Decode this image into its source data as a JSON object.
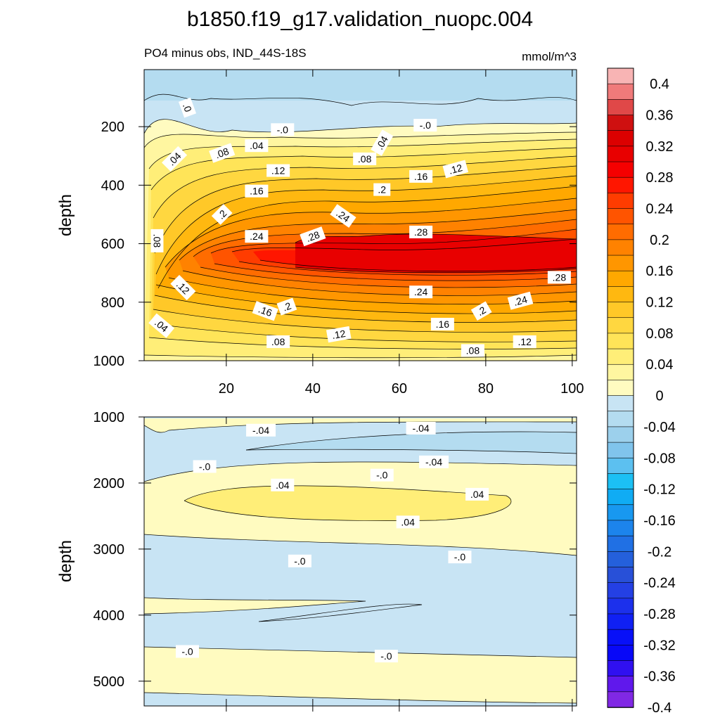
{
  "title": "b1850.f19_g17.validation_nuopc.004",
  "chart_data": {
    "type": "contour",
    "panel_top": {
      "subtitle_left": "PO4 minus obs, IND_44S-18S",
      "subtitle_right": "mmol/m^3",
      "ylabel": "depth",
      "xlim": [
        1,
        101
      ],
      "ylim": [
        1000,
        5
      ],
      "x_ticks": [
        "20",
        "40",
        "60",
        "80",
        "100"
      ],
      "x_tick_values": [
        20,
        40,
        60,
        80,
        100
      ],
      "y_ticks": [
        "200",
        "400",
        "600",
        "800",
        "1000"
      ],
      "y_tick_values": [
        200,
        400,
        600,
        800,
        1000
      ],
      "contour_labels": [
        {
          "text": ".0",
          "x": 11,
          "y": 135,
          "rot": 70
        },
        {
          "text": "-.0",
          "x": 33,
          "y": 210,
          "rot": 0
        },
        {
          "text": "-.0",
          "x": 66,
          "y": 195,
          "rot": 0
        },
        {
          "text": ".04",
          "x": 8,
          "y": 310,
          "rot": -45
        },
        {
          "text": ".08",
          "x": 19,
          "y": 290,
          "rot": -20
        },
        {
          "text": ".04",
          "x": 27,
          "y": 265,
          "rot": 0
        },
        {
          "text": ".04",
          "x": 56,
          "y": 255,
          "rot": -60
        },
        {
          "text": ".08",
          "x": 52,
          "y": 310,
          "rot": 0
        },
        {
          "text": ".12",
          "x": 32,
          "y": 350,
          "rot": 0
        },
        {
          "text": ".12",
          "x": 73,
          "y": 345,
          "rot": -15
        },
        {
          "text": ".16",
          "x": 65,
          "y": 370,
          "rot": 0
        },
        {
          "text": ".16",
          "x": 27,
          "y": 420,
          "rot": 0
        },
        {
          "text": ".2",
          "x": 56,
          "y": 415,
          "rot": 0
        },
        {
          "text": ".2",
          "x": 19,
          "y": 500,
          "rot": -45
        },
        {
          "text": ".24",
          "x": 47,
          "y": 505,
          "rot": 35
        },
        {
          "text": ".24",
          "x": 27,
          "y": 575,
          "rot": 0
        },
        {
          "text": ".28",
          "x": 40,
          "y": 575,
          "rot": -20
        },
        {
          "text": ".28",
          "x": 65,
          "y": 560,
          "rot": 0
        },
        {
          "text": ".08",
          "x": 4,
          "y": 590,
          "rot": 90
        },
        {
          "text": ".12",
          "x": 10,
          "y": 750,
          "rot": 45
        },
        {
          "text": ".24",
          "x": 65,
          "y": 765,
          "rot": 0
        },
        {
          "text": ".28",
          "x": 97,
          "y": 715,
          "rot": 0
        },
        {
          "text": ".24",
          "x": 88,
          "y": 795,
          "rot": -15
        },
        {
          "text": ".2",
          "x": 34,
          "y": 815,
          "rot": -20
        },
        {
          "text": ".16",
          "x": 29,
          "y": 830,
          "rot": 20
        },
        {
          "text": ".2",
          "x": 79,
          "y": 830,
          "rot": -30
        },
        {
          "text": ".16",
          "x": 70,
          "y": 875,
          "rot": 0
        },
        {
          "text": ".04",
          "x": 5,
          "y": 880,
          "rot": 40
        },
        {
          "text": ".12",
          "x": 46,
          "y": 910,
          "rot": -10
        },
        {
          "text": ".08",
          "x": 32,
          "y": 935,
          "rot": 0
        },
        {
          "text": ".12",
          "x": 89,
          "y": 935,
          "rot": 0
        },
        {
          "text": ".08",
          "x": 77,
          "y": 965,
          "rot": 0
        }
      ]
    },
    "panel_bottom": {
      "ylabel": "depth",
      "xlim": [
        1,
        101
      ],
      "ylim": [
        5375,
        1000
      ],
      "y_ticks": [
        "1000",
        "2000",
        "3000",
        "4000",
        "5000"
      ],
      "y_tick_values": [
        1000,
        2000,
        3000,
        4000,
        5000
      ],
      "contour_labels": [
        {
          "text": "-.04",
          "x": 28,
          "y": 1200,
          "rot": 0
        },
        {
          "text": "-.04",
          "x": 65,
          "y": 1170,
          "rot": 0
        },
        {
          "text": "-.04",
          "x": 68,
          "y": 1680,
          "rot": 0
        },
        {
          "text": "-.0",
          "x": 15,
          "y": 1750,
          "rot": 0
        },
        {
          "text": "-.0",
          "x": 56,
          "y": 1880,
          "rot": 0
        },
        {
          "text": ".04",
          "x": 33,
          "y": 2030,
          "rot": 0
        },
        {
          "text": ".04",
          "x": 78,
          "y": 2170,
          "rot": 0
        },
        {
          "text": ".04",
          "x": 62,
          "y": 2590,
          "rot": 0
        },
        {
          "text": "-.0",
          "x": 37,
          "y": 3180,
          "rot": 0
        },
        {
          "text": "-.0",
          "x": 74,
          "y": 3120,
          "rot": 0
        },
        {
          "text": "-.0",
          "x": 11,
          "y": 4550,
          "rot": 0
        },
        {
          "text": "-.0",
          "x": 57,
          "y": 4620,
          "rot": 0
        }
      ]
    },
    "colorbar": {
      "labels": [
        "0.4",
        "0.36",
        "0.32",
        "0.28",
        "0.24",
        "0.2",
        "0.16",
        "0.12",
        "0.08",
        "0.04",
        "0",
        "-0.04",
        "-0.08",
        "-0.12",
        "-0.16",
        "-0.2",
        "-0.24",
        "-0.28",
        "-0.32",
        "-0.36",
        "-0.4"
      ],
      "colors": [
        "#f8b4b4",
        "#f07a7a",
        "#e04848",
        "#cf1010",
        "#dc0000",
        "#e80000",
        "#f50000",
        "#ff1600",
        "#ff3c00",
        "#ff5400",
        "#ff6c00",
        "#ff8200",
        "#ff9600",
        "#ffa800",
        "#ffb810",
        "#ffc828",
        "#ffd740",
        "#ffe458",
        "#ffee78",
        "#fff6a0",
        "#fffbc0",
        "#c8e4f4",
        "#b4dcf0",
        "#9cd0ec",
        "#80c4ec",
        "#5cc0f0",
        "#1cc0f4",
        "#10acf4",
        "#1898f0",
        "#1c84ec",
        "#2070e4",
        "#2460dc",
        "#2850d8",
        "#2440e4",
        "#1c30ec",
        "#1020f4",
        "#0810f8",
        "#0808f8",
        "#3010f0",
        "#6018ec",
        "#8028e4"
      ]
    }
  }
}
